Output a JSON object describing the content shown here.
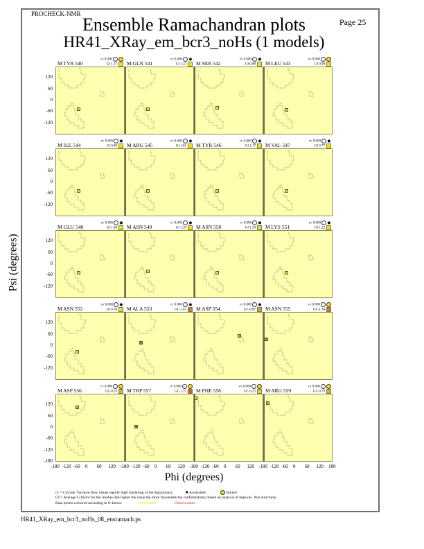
{
  "header": {
    "program": "PROCHECK-NMR",
    "page": "Page 25",
    "title": "Ensemble Ramachandran plots",
    "subtitle": "HR41_XRay_em_bcr3_noHs (1 models)"
  },
  "axes": {
    "xlabel": "Phi (degrees)",
    "ylabel": "Psi (degrees)",
    "yticks": [
      "120",
      "60",
      "0",
      "-60",
      "-120"
    ],
    "ybottom": "-180",
    "xticks": [
      "-180",
      "-120",
      "-60",
      "0",
      "60",
      "120"
    ],
    "xlast": "180"
  },
  "colors": {
    "panel_bg": "#ffffb0",
    "favourable": "#f4e400",
    "mid": "#e8b020",
    "unfavourable": "#d06020",
    "region_outline": "#8a8a5a"
  },
  "legend": {
    "line1": "cv = Circular Variance (low values signify high clustering of the data points).",
    "accessible": "Accessible",
    "buried": "Buried",
    "line2": "Gf = Average G-factor for the residue (the higher the value the more favourable the conformations) based on analysis of high-res. Xtal structures",
    "line3": "Data points coloured according to G-factor:",
    "favourable": "Favourable",
    "unfavourable": "Unfavourable"
  },
  "footer": {
    "filename": "HR41_XRay_em_bcr3_noHs_08_ensramach.ps"
  },
  "panels": [
    {
      "name": "M TYR 540",
      "cv": "cv 0.000",
      "gf": "Gf  1.17",
      "env": "buried",
      "phi": -60,
      "psi": -45,
      "color": "#f4e400"
    },
    {
      "name": "M GLN 541",
      "cv": "cv 0.000",
      "gf": "Gf  1.23",
      "env": "accessible",
      "phi": -60,
      "psi": -45,
      "color": "#f4e400"
    },
    {
      "name": "M SER 542",
      "cv": "cv 0.000",
      "gf": "Gf  0.88",
      "env": "accessible",
      "phi": -60,
      "psi": -40,
      "color": "#f4e400"
    },
    {
      "name": "M LEU 543",
      "cv": "cv 0.000",
      "gf": "Gf  0.99",
      "env": "buried",
      "phi": -60,
      "psi": -50,
      "color": "#f4e400"
    },
    {
      "name": "M ILE 544",
      "cv": "cv 0.000",
      "gf": "Gf  0.80",
      "env": "accessible",
      "phi": -60,
      "psi": -45,
      "color": "#f4e400"
    },
    {
      "name": "M ARG 545",
      "cv": "cv 0.000",
      "gf": "Gf  1.01",
      "env": "accessible",
      "phi": -60,
      "psi": -45,
      "color": "#f4e400"
    },
    {
      "name": "M TYR 546",
      "cv": "cv 0.000",
      "gf": "Gf  1.17",
      "env": "accessible",
      "phi": -60,
      "psi": -45,
      "color": "#f4e400"
    },
    {
      "name": "M VAL 547",
      "cv": "cv 0.000",
      "gf": "Gf  0.77",
      "env": "accessible",
      "phi": -60,
      "psi": -45,
      "color": "#f4e400"
    },
    {
      "name": "M GLU 548",
      "cv": "cv 0.000",
      "gf": "Gf  1.08",
      "env": "accessible",
      "phi": -60,
      "psi": -45,
      "color": "#f4e400"
    },
    {
      "name": "M ASN 549",
      "cv": "cv 0.000",
      "gf": "Gf  1.39",
      "env": "accessible",
      "phi": -60,
      "psi": -40,
      "color": "#f4e400"
    },
    {
      "name": "M ASN 550",
      "cv": "cv 0.000",
      "gf": "Gf  1.39",
      "env": "accessible",
      "phi": -60,
      "psi": -45,
      "color": "#f4e400"
    },
    {
      "name": "M LYS 551",
      "cv": "cv 0.000",
      "gf": "Gf  1.22",
      "env": "accessible",
      "phi": -60,
      "psi": -45,
      "color": "#f4e400"
    },
    {
      "name": "M ASN 552",
      "cv": "cv 0.000",
      "gf": "Gf  0.78",
      "env": "accessible",
      "phi": -65,
      "psi": -30,
      "color": "#f4e400"
    },
    {
      "name": "M ALA 553",
      "cv": "cv 0.000",
      "gf": "Gf -1.45",
      "env": "accessible",
      "phi": -95,
      "psi": 15,
      "color": "#d07a20"
    },
    {
      "name": "M ASP 554",
      "cv": "cv 0.000",
      "gf": "Gf -0.87",
      "env": "accessible",
      "phi": 55,
      "psi": 55,
      "color": "#e0a020"
    },
    {
      "name": "M ASN 555",
      "cv": "cv 0.000",
      "gf": "Gf -1.38",
      "env": "buried",
      "phi": -165,
      "psi": 35,
      "color": "#d07a20"
    },
    {
      "name": "M ASP 556",
      "cv": "cv 0.000",
      "gf": "Gf -0.53",
      "env": "buried",
      "phi": -65,
      "psi": 110,
      "color": "#e8b020"
    },
    {
      "name": "M TRP 557",
      "cv": "cv 0.000",
      "gf": "Gf -1.73",
      "env": "buried",
      "phi": -120,
      "psi": 5,
      "color": "#d06020"
    },
    {
      "name": "M PHE 558",
      "cv": "cv 0.000",
      "gf": "Gf -0.23",
      "env": "buried",
      "phi": -170,
      "psi": 155,
      "color": "#f0d020"
    },
    {
      "name": "M ARG 559",
      "cv": "cv 0.000",
      "gf": "Gf -0.79",
      "env": "buried",
      "phi": -155,
      "psi": 130,
      "color": "#e8b020"
    }
  ],
  "chart_data": {
    "type": "scatter",
    "title": "Ensemble Ramachandran plots",
    "subtitle": "HR41_XRay_em_bcr3_noHs (1 models)",
    "xlabel": "Phi (degrees)",
    "ylabel": "Psi (degrees)",
    "xlim": [
      -180,
      180
    ],
    "ylim": [
      -180,
      180
    ],
    "xticks": [
      -180,
      -120,
      -60,
      0,
      60,
      120,
      180
    ],
    "yticks": [
      -180,
      -120,
      -60,
      0,
      60,
      120
    ],
    "grid": false,
    "layout": "5 rows x 4 columns of small-multiple panels",
    "series": [
      {
        "name": "M TYR 540",
        "phi": [
          -60
        ],
        "psi": [
          -45
        ],
        "cv": 0.0,
        "gf": 1.17
      },
      {
        "name": "M GLN 541",
        "phi": [
          -60
        ],
        "psi": [
          -45
        ],
        "cv": 0.0,
        "gf": 1.23
      },
      {
        "name": "M SER 542",
        "phi": [
          -60
        ],
        "psi": [
          -40
        ],
        "cv": 0.0,
        "gf": 0.88
      },
      {
        "name": "M LEU 543",
        "phi": [
          -60
        ],
        "psi": [
          -50
        ],
        "cv": 0.0,
        "gf": 0.99
      },
      {
        "name": "M ILE 544",
        "phi": [
          -60
        ],
        "psi": [
          -45
        ],
        "cv": 0.0,
        "gf": 0.8
      },
      {
        "name": "M ARG 545",
        "phi": [
          -60
        ],
        "psi": [
          -45
        ],
        "cv": 0.0,
        "gf": 1.01
      },
      {
        "name": "M TYR 546",
        "phi": [
          -60
        ],
        "psi": [
          -45
        ],
        "cv": 0.0,
        "gf": 1.17
      },
      {
        "name": "M VAL 547",
        "phi": [
          -60
        ],
        "psi": [
          -45
        ],
        "cv": 0.0,
        "gf": 0.77
      },
      {
        "name": "M GLU 548",
        "phi": [
          -60
        ],
        "psi": [
          -45
        ],
        "cv": 0.0,
        "gf": 1.08
      },
      {
        "name": "M ASN 549",
        "phi": [
          -60
        ],
        "psi": [
          -40
        ],
        "cv": 0.0,
        "gf": 1.39
      },
      {
        "name": "M ASN 550",
        "phi": [
          -60
        ],
        "psi": [
          -45
        ],
        "cv": 0.0,
        "gf": 1.39
      },
      {
        "name": "M LYS 551",
        "phi": [
          -60
        ],
        "psi": [
          -45
        ],
        "cv": 0.0,
        "gf": 1.22
      },
      {
        "name": "M ASN 552",
        "phi": [
          -65
        ],
        "psi": [
          -30
        ],
        "cv": 0.0,
        "gf": 0.78
      },
      {
        "name": "M ALA 553",
        "phi": [
          -95
        ],
        "psi": [
          15
        ],
        "cv": 0.0,
        "gf": -1.45
      },
      {
        "name": "M ASP 554",
        "phi": [
          55
        ],
        "psi": [
          55
        ],
        "cv": 0.0,
        "gf": -0.87
      },
      {
        "name": "M ASN 555",
        "phi": [
          -165
        ],
        "psi": [
          35
        ],
        "cv": 0.0,
        "gf": -1.38
      },
      {
        "name": "M ASP 556",
        "phi": [
          -65
        ],
        "psi": [
          110
        ],
        "cv": 0.0,
        "gf": -0.53
      },
      {
        "name": "M TRP 557",
        "phi": [
          -120
        ],
        "psi": [
          5
        ],
        "cv": 0.0,
        "gf": -1.73
      },
      {
        "name": "M PHE 558",
        "phi": [
          -170
        ],
        "psi": [
          155
        ],
        "cv": 0.0,
        "gf": -0.23
      },
      {
        "name": "M ARG 559",
        "phi": [
          -155
        ],
        "psi": [
          130
        ],
        "cv": 0.0,
        "gf": -0.79
      }
    ],
    "legend": [
      "Accessible",
      "Buried",
      "Favourable",
      "Unfavourable"
    ]
  }
}
